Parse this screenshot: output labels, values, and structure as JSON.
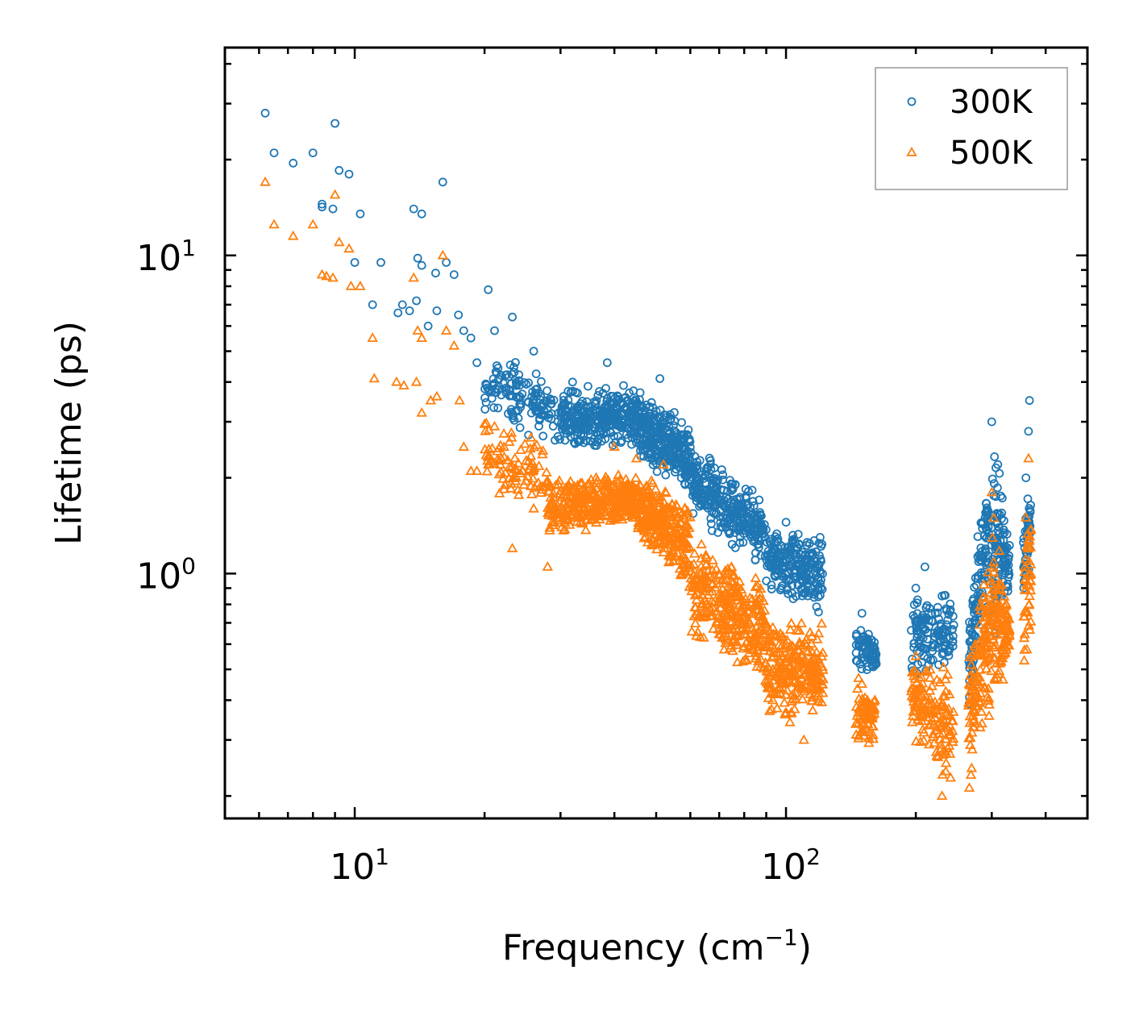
{
  "chart_data": {
    "type": "scatter",
    "title": "",
    "xlabel": "Frequency (cm",
    "xlabel_sup": "−1",
    "xlabel_close": ")",
    "ylabel": "Lifetime (ps)",
    "xscale": "log",
    "yscale": "log",
    "xlim": [
      5,
      500
    ],
    "ylim": [
      0.17,
      45
    ],
    "x_ticks": [
      {
        "value": 10,
        "base": "10",
        "exp": "1"
      },
      {
        "value": 100,
        "base": "10",
        "exp": "2"
      }
    ],
    "y_ticks": [
      {
        "value": 1,
        "base": "10",
        "exp": "0"
      },
      {
        "value": 10,
        "base": "10",
        "exp": "1"
      }
    ],
    "legend_position": "top-right",
    "series": [
      {
        "name": "300K",
        "marker": "circle",
        "color": "#1f77b4",
        "points": [
          [
            6.2,
            28
          ],
          [
            6.5,
            21
          ],
          [
            7.2,
            19.5
          ],
          [
            8.0,
            21
          ],
          [
            8.4,
            14.5
          ],
          [
            8.4,
            14.2
          ],
          [
            8.9,
            14
          ],
          [
            9.0,
            26
          ],
          [
            9.2,
            18.5
          ],
          [
            9.7,
            18
          ],
          [
            10.0,
            9.5
          ],
          [
            10.3,
            13.5
          ],
          [
            11.0,
            7
          ],
          [
            11.5,
            9.5
          ],
          [
            12.6,
            6.6
          ],
          [
            12.9,
            7
          ],
          [
            13.4,
            6.7
          ],
          [
            13.7,
            14
          ],
          [
            13.9,
            7.2
          ],
          [
            14.0,
            9.8
          ],
          [
            14.3,
            9.3
          ],
          [
            14.3,
            13.5
          ],
          [
            14.8,
            6
          ],
          [
            15.4,
            8.8
          ],
          [
            15.5,
            6.7
          ],
          [
            16.0,
            17
          ],
          [
            16.3,
            9.5
          ],
          [
            17.0,
            8.7
          ],
          [
            17.4,
            6.5
          ],
          [
            17.9,
            5.8
          ],
          [
            18.6,
            5.5
          ],
          [
            19.2,
            4.6
          ],
          [
            20.4,
            7.8
          ],
          [
            21.1,
            5.8
          ],
          [
            23.2,
            6.4
          ],
          [
            26.0,
            5.0
          ],
          [
            32.0,
            4.0
          ],
          [
            38.5,
            4.6
          ],
          [
            42.0,
            3.9
          ],
          [
            51.0,
            4.1
          ],
          [
            73.0,
            1.6
          ],
          [
            100.0,
            1.45
          ],
          [
            120.0,
            1.3
          ],
          [
            150.0,
            0.75
          ],
          [
            200.0,
            0.9
          ],
          [
            210.0,
            1.05
          ],
          [
            230.0,
            0.85
          ],
          [
            300.0,
            3.0
          ],
          [
            367.0,
            3.5
          ],
          [
            365.0,
            2.8
          ],
          [
            360.0,
            2.0
          ]
        ]
      },
      {
        "name": "500K",
        "marker": "triangle",
        "color": "#ff7f0e",
        "points": [
          [
            6.2,
            17
          ],
          [
            6.5,
            12.5
          ],
          [
            7.2,
            11.5
          ],
          [
            8.0,
            12.5
          ],
          [
            8.4,
            8.7
          ],
          [
            8.6,
            8.6
          ],
          [
            8.9,
            8.5
          ],
          [
            9.0,
            15.5
          ],
          [
            9.2,
            11
          ],
          [
            9.7,
            10.5
          ],
          [
            9.8,
            8.0
          ],
          [
            10.3,
            8.0
          ],
          [
            11.0,
            5.5
          ],
          [
            11.1,
            4.1
          ],
          [
            12.5,
            4.0
          ],
          [
            13.0,
            3.9
          ],
          [
            13.7,
            8.5
          ],
          [
            13.9,
            4.0
          ],
          [
            14.0,
            5.8
          ],
          [
            14.3,
            5.5
          ],
          [
            14.3,
            3.2
          ],
          [
            15.0,
            3.5
          ],
          [
            15.5,
            3.6
          ],
          [
            16.0,
            10
          ],
          [
            16.3,
            5.8
          ],
          [
            17.0,
            5.2
          ],
          [
            17.5,
            3.5
          ],
          [
            17.9,
            2.5
          ],
          [
            18.6,
            2.1
          ],
          [
            19.2,
            2.1
          ],
          [
            20.4,
            2.2
          ],
          [
            21.1,
            2.9
          ],
          [
            23.2,
            1.2
          ],
          [
            26.0,
            1.6
          ],
          [
            28.0,
            1.05
          ],
          [
            40.0,
            2.5
          ],
          [
            45.0,
            2.3
          ],
          [
            52.0,
            2.2
          ],
          [
            73.0,
            0.95
          ],
          [
            100.0,
            0.6
          ],
          [
            110.0,
            0.3
          ],
          [
            150.0,
            0.45
          ],
          [
            200.0,
            0.55
          ],
          [
            230.0,
            0.2
          ],
          [
            300.0,
            1.8
          ],
          [
            365.0,
            2.3
          ],
          [
            360.0,
            1.5
          ]
        ]
      }
    ],
    "dense_regions": [
      {
        "series": 0,
        "segments": [
          {
            "x": [
              20,
              30
            ],
            "y_lo": [
              3.0,
              2.4
            ],
            "y_hi": [
              5.0,
              4.2
            ],
            "n": 130
          },
          {
            "x": [
              30,
              45
            ],
            "y_lo": [
              2.4,
              2.5
            ],
            "y_hi": [
              3.9,
              3.9
            ],
            "n": 320
          },
          {
            "x": [
              45,
              60
            ],
            "y_lo": [
              2.3,
              1.7
            ],
            "y_hi": [
              3.8,
              3.0
            ],
            "n": 300
          },
          {
            "x": [
              60,
              90
            ],
            "y_lo": [
              1.5,
              1.0
            ],
            "y_hi": [
              2.5,
              1.8
            ],
            "n": 300
          },
          {
            "x": [
              90,
              122
            ],
            "y_lo": [
              0.9,
              0.7
            ],
            "y_hi": [
              1.4,
              1.35
            ],
            "n": 230
          },
          {
            "x": [
              145,
              162
            ],
            "y_lo": [
              0.48,
              0.5
            ],
            "y_hi": [
              0.75,
              0.62
            ],
            "n": 70
          },
          {
            "x": [
              195,
              245
            ],
            "y_lo": [
              0.45,
              0.5
            ],
            "y_hi": [
              0.9,
              0.85
            ],
            "n": 130
          },
          {
            "x": [
              265,
              300
            ],
            "y_lo": [
              0.32,
              0.75
            ],
            "y_hi": [
              0.7,
              2.5
            ],
            "n": 130
          },
          {
            "x": [
              300,
              330
            ],
            "y_lo": [
              0.6,
              0.8
            ],
            "y_hi": [
              2.9,
              1.3
            ],
            "n": 110
          },
          {
            "x": [
              355,
              370
            ],
            "y_lo": [
              0.55,
              1.2
            ],
            "y_hi": [
              1.5,
              2.0
            ],
            "n": 45
          }
        ]
      },
      {
        "series": 1,
        "segments": [
          {
            "x": [
              20,
              28
            ],
            "y_lo": [
              1.8,
              1.5
            ],
            "y_hi": [
              3.2,
              2.6
            ],
            "n": 90
          },
          {
            "x": [
              28,
              45
            ],
            "y_lo": [
              1.3,
              1.45
            ],
            "y_hi": [
              2.0,
              2.1
            ],
            "n": 340
          },
          {
            "x": [
              45,
              60
            ],
            "y_lo": [
              1.3,
              0.85
            ],
            "y_hi": [
              2.1,
              1.7
            ],
            "n": 300
          },
          {
            "x": [
              60,
              90
            ],
            "y_lo": [
              0.6,
              0.45
            ],
            "y_hi": [
              1.3,
              0.95
            ],
            "n": 320
          },
          {
            "x": [
              90,
              122
            ],
            "y_lo": [
              0.33,
              0.35
            ],
            "y_hi": [
              0.75,
              0.7
            ],
            "n": 250
          },
          {
            "x": [
              145,
              162
            ],
            "y_lo": [
              0.28,
              0.3
            ],
            "y_hi": [
              0.5,
              0.42
            ],
            "n": 70
          },
          {
            "x": [
              195,
              245
            ],
            "y_lo": [
              0.3,
              0.2
            ],
            "y_hi": [
              0.55,
              0.5
            ],
            "n": 140
          },
          {
            "x": [
              265,
              300
            ],
            "y_lo": [
              0.2,
              0.35
            ],
            "y_hi": [
              0.55,
              1.2
            ],
            "n": 130
          },
          {
            "x": [
              300,
              330
            ],
            "y_lo": [
              0.3,
              0.5
            ],
            "y_hi": [
              1.8,
              0.8
            ],
            "n": 110
          },
          {
            "x": [
              355,
              370
            ],
            "y_lo": [
              0.45,
              0.6
            ],
            "y_hi": [
              1.2,
              1.6
            ],
            "n": 45
          }
        ]
      }
    ]
  }
}
